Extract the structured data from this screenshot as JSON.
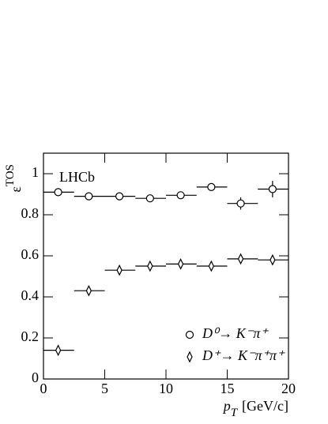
{
  "chart_data": {
    "type": "errorbar",
    "ylabel": {
      "symbol": "ε",
      "superscript": "TOS"
    },
    "xlabel": {
      "symbol": "p",
      "subscript": "T",
      "unit": "[GeV/c]"
    },
    "annotation": "LHCb",
    "bins": [
      0,
      2.5,
      5,
      7.5,
      10,
      12.5,
      15,
      17.5,
      20
    ],
    "x": [
      1.2,
      3.7,
      6.2,
      8.7,
      11.2,
      13.7,
      16.1,
      18.7
    ],
    "series": [
      {
        "name": "D⁰→ K⁻π⁺",
        "color": "#000000",
        "marker": "circle",
        "values": [
          0.91,
          0.89,
          0.89,
          0.88,
          0.895,
          0.935,
          0.855,
          0.925
        ],
        "yerr": [
          0.01,
          0.01,
          0.01,
          0.01,
          0.012,
          0.012,
          0.03,
          0.04
        ]
      },
      {
        "name": "D⁺→ K⁻π⁺π⁺",
        "color": "#000000",
        "marker": "diamond",
        "values": [
          0.14,
          0.43,
          0.53,
          0.55,
          0.56,
          0.55,
          0.585,
          0.58
        ],
        "yerr": [
          0.025,
          0.008,
          0.008,
          0.008,
          0.008,
          0.008,
          0.01,
          0.02
        ]
      }
    ],
    "xlim": [
      0,
      20
    ],
    "ylim": [
      0,
      1.1
    ],
    "xticks": [
      0,
      5,
      10,
      15,
      20
    ],
    "yticks": [
      0,
      0.2,
      0.4,
      0.6,
      0.8,
      1
    ],
    "legend": "lower right",
    "grid": false
  }
}
